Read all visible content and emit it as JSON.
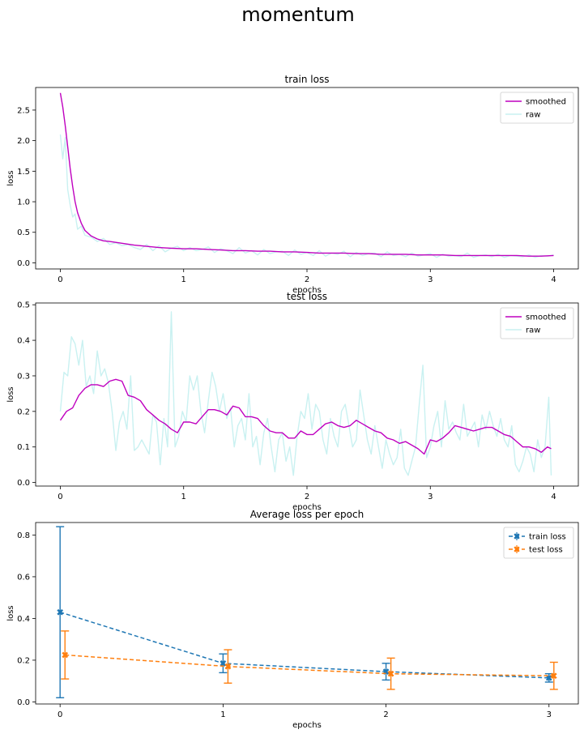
{
  "suptitle": "momentum",
  "chart_data": [
    {
      "type": "line",
      "title": "train loss",
      "xlabel": "epochs",
      "ylabel": "loss",
      "xlim": [
        -0.2,
        4.2
      ],
      "ylim": [
        -0.1,
        2.87
      ],
      "xticks": [
        0,
        1,
        2,
        3,
        4
      ],
      "yticks": [
        0.0,
        0.5,
        1.0,
        1.5,
        2.0,
        2.5
      ],
      "ytick_labels": [
        "0.0",
        "0.5",
        "1.0",
        "1.5",
        "2.0",
        "2.5"
      ],
      "legend_position": "upper right",
      "series": [
        {
          "name": "smoothed",
          "color": "#bf00bf",
          "x": [
            0,
            0.02,
            0.04,
            0.06,
            0.08,
            0.1,
            0.12,
            0.14,
            0.17,
            0.2,
            0.25,
            0.3,
            0.35,
            0.4,
            0.5,
            0.6,
            0.7,
            0.8,
            0.9,
            1.0,
            1.1,
            1.2,
            1.3,
            1.4,
            1.5,
            1.6,
            1.7,
            1.8,
            1.9,
            2.0,
            2.1,
            2.2,
            2.3,
            2.4,
            2.5,
            2.6,
            2.7,
            2.8,
            2.9,
            3.0,
            3.1,
            3.2,
            3.3,
            3.4,
            3.5,
            3.6,
            3.7,
            3.8,
            3.9,
            4.0
          ],
          "values": [
            2.78,
            2.55,
            2.25,
            1.9,
            1.55,
            1.25,
            1.0,
            0.82,
            0.65,
            0.53,
            0.44,
            0.39,
            0.36,
            0.35,
            0.32,
            0.29,
            0.27,
            0.25,
            0.24,
            0.23,
            0.23,
            0.22,
            0.21,
            0.2,
            0.2,
            0.19,
            0.19,
            0.18,
            0.18,
            0.17,
            0.16,
            0.16,
            0.16,
            0.15,
            0.15,
            0.14,
            0.14,
            0.14,
            0.13,
            0.13,
            0.13,
            0.12,
            0.12,
            0.12,
            0.12,
            0.12,
            0.12,
            0.11,
            0.11,
            0.12
          ]
        },
        {
          "name": "raw",
          "color": "#c9f1f1",
          "x": [
            0,
            0.02,
            0.04,
            0.06,
            0.08,
            0.1,
            0.12,
            0.14,
            0.17,
            0.2,
            0.25,
            0.3,
            0.35,
            0.4,
            0.45,
            0.5,
            0.55,
            0.6,
            0.65,
            0.7,
            0.75,
            0.8,
            0.85,
            0.9,
            0.95,
            1.0,
            1.05,
            1.1,
            1.15,
            1.2,
            1.25,
            1.3,
            1.35,
            1.4,
            1.45,
            1.5,
            1.55,
            1.6,
            1.65,
            1.7,
            1.75,
            1.8,
            1.85,
            1.9,
            1.95,
            2.0,
            2.05,
            2.1,
            2.15,
            2.2,
            2.25,
            2.3,
            2.35,
            2.4,
            2.45,
            2.5,
            2.55,
            2.6,
            2.65,
            2.7,
            2.75,
            2.8,
            2.85,
            2.9,
            2.95,
            3.0,
            3.05,
            3.1,
            3.15,
            3.2,
            3.25,
            3.3,
            3.35,
            3.4,
            3.45,
            3.5,
            3.55,
            3.6,
            3.65,
            3.7,
            3.75,
            3.8,
            3.85,
            3.9,
            3.95,
            4.0
          ],
          "values": [
            2.1,
            1.7,
            2.05,
            1.2,
            0.95,
            0.75,
            0.8,
            0.55,
            0.6,
            0.45,
            0.42,
            0.35,
            0.4,
            0.3,
            0.33,
            0.28,
            0.3,
            0.25,
            0.22,
            0.3,
            0.2,
            0.28,
            0.18,
            0.24,
            0.27,
            0.2,
            0.25,
            0.2,
            0.22,
            0.26,
            0.17,
            0.23,
            0.2,
            0.15,
            0.25,
            0.16,
            0.2,
            0.13,
            0.22,
            0.15,
            0.18,
            0.19,
            0.12,
            0.21,
            0.14,
            0.17,
            0.12,
            0.2,
            0.11,
            0.16,
            0.14,
            0.19,
            0.1,
            0.17,
            0.12,
            0.15,
            0.16,
            0.1,
            0.18,
            0.12,
            0.14,
            0.1,
            0.16,
            0.11,
            0.13,
            0.15,
            0.09,
            0.14,
            0.11,
            0.12,
            0.1,
            0.16,
            0.09,
            0.12,
            0.13,
            0.1,
            0.14,
            0.09,
            0.12,
            0.11,
            0.1,
            0.13,
            0.09,
            0.12,
            0.11,
            0.13
          ]
        }
      ]
    },
    {
      "type": "line",
      "title": "test loss",
      "xlabel": "epochs",
      "ylabel": "loss",
      "xlim": [
        -0.2,
        4.2
      ],
      "ylim": [
        -0.01,
        0.505
      ],
      "xticks": [
        0,
        1,
        2,
        3,
        4
      ],
      "yticks": [
        0.0,
        0.1,
        0.2,
        0.3,
        0.4,
        0.5
      ],
      "ytick_labels": [
        "0.0",
        "0.1",
        "0.2",
        "0.3",
        "0.4",
        "0.5"
      ],
      "legend_position": "upper right",
      "series": [
        {
          "name": "smoothed",
          "color": "#bf00bf",
          "x": [
            0,
            0.05,
            0.1,
            0.15,
            0.2,
            0.25,
            0.3,
            0.35,
            0.4,
            0.45,
            0.5,
            0.55,
            0.6,
            0.65,
            0.7,
            0.75,
            0.8,
            0.85,
            0.9,
            0.95,
            1.0,
            1.05,
            1.1,
            1.15,
            1.2,
            1.25,
            1.3,
            1.35,
            1.4,
            1.45,
            1.5,
            1.55,
            1.6,
            1.65,
            1.7,
            1.75,
            1.8,
            1.85,
            1.9,
            1.95,
            2.0,
            2.05,
            2.1,
            2.15,
            2.2,
            2.25,
            2.3,
            2.35,
            2.4,
            2.45,
            2.5,
            2.55,
            2.6,
            2.65,
            2.7,
            2.75,
            2.8,
            2.85,
            2.9,
            2.95,
            3.0,
            3.05,
            3.1,
            3.15,
            3.2,
            3.25,
            3.3,
            3.35,
            3.4,
            3.45,
            3.5,
            3.55,
            3.6,
            3.65,
            3.7,
            3.75,
            3.8,
            3.85,
            3.9,
            3.95,
            3.98
          ],
          "values": [
            0.175,
            0.2,
            0.21,
            0.245,
            0.265,
            0.275,
            0.275,
            0.27,
            0.285,
            0.29,
            0.285,
            0.245,
            0.24,
            0.23,
            0.205,
            0.19,
            0.175,
            0.165,
            0.15,
            0.14,
            0.17,
            0.17,
            0.165,
            0.185,
            0.205,
            0.205,
            0.2,
            0.19,
            0.215,
            0.21,
            0.185,
            0.185,
            0.18,
            0.16,
            0.145,
            0.14,
            0.14,
            0.125,
            0.125,
            0.145,
            0.135,
            0.135,
            0.15,
            0.165,
            0.17,
            0.16,
            0.155,
            0.16,
            0.175,
            0.165,
            0.155,
            0.145,
            0.14,
            0.125,
            0.12,
            0.11,
            0.115,
            0.105,
            0.095,
            0.08,
            0.12,
            0.115,
            0.125,
            0.14,
            0.16,
            0.155,
            0.15,
            0.145,
            0.15,
            0.155,
            0.155,
            0.145,
            0.135,
            0.13,
            0.115,
            0.1,
            0.1,
            0.095,
            0.085,
            0.1,
            0.095
          ]
        },
        {
          "name": "raw",
          "color": "#c9f1f1",
          "x": [
            0,
            0.03,
            0.06,
            0.09,
            0.12,
            0.15,
            0.18,
            0.21,
            0.24,
            0.27,
            0.3,
            0.33,
            0.36,
            0.39,
            0.42,
            0.45,
            0.48,
            0.51,
            0.54,
            0.57,
            0.6,
            0.63,
            0.66,
            0.69,
            0.72,
            0.75,
            0.78,
            0.81,
            0.84,
            0.87,
            0.9,
            0.93,
            0.96,
            0.99,
            1.02,
            1.05,
            1.08,
            1.11,
            1.14,
            1.17,
            1.2,
            1.23,
            1.26,
            1.29,
            1.32,
            1.35,
            1.38,
            1.41,
            1.44,
            1.47,
            1.5,
            1.53,
            1.56,
            1.59,
            1.62,
            1.65,
            1.68,
            1.71,
            1.74,
            1.77,
            1.8,
            1.83,
            1.86,
            1.89,
            1.92,
            1.95,
            1.98,
            2.01,
            2.04,
            2.07,
            2.1,
            2.13,
            2.16,
            2.19,
            2.22,
            2.25,
            2.28,
            2.31,
            2.34,
            2.37,
            2.4,
            2.43,
            2.46,
            2.49,
            2.52,
            2.55,
            2.58,
            2.61,
            2.64,
            2.67,
            2.7,
            2.73,
            2.76,
            2.79,
            2.82,
            2.85,
            2.88,
            2.91,
            2.94,
            2.97,
            3.0,
            3.03,
            3.06,
            3.09,
            3.12,
            3.15,
            3.18,
            3.21,
            3.24,
            3.27,
            3.3,
            3.33,
            3.36,
            3.39,
            3.42,
            3.45,
            3.48,
            3.51,
            3.54,
            3.57,
            3.6,
            3.63,
            3.66,
            3.69,
            3.72,
            3.75,
            3.78,
            3.81,
            3.84,
            3.87,
            3.9,
            3.93,
            3.96,
            3.98
          ],
          "values": [
            0.2,
            0.31,
            0.3,
            0.41,
            0.39,
            0.33,
            0.4,
            0.27,
            0.3,
            0.25,
            0.37,
            0.3,
            0.32,
            0.28,
            0.2,
            0.09,
            0.17,
            0.2,
            0.15,
            0.3,
            0.09,
            0.1,
            0.12,
            0.1,
            0.08,
            0.19,
            0.17,
            0.05,
            0.18,
            0.1,
            0.48,
            0.1,
            0.13,
            0.2,
            0.17,
            0.3,
            0.26,
            0.3,
            0.2,
            0.14,
            0.23,
            0.31,
            0.27,
            0.2,
            0.25,
            0.18,
            0.21,
            0.1,
            0.16,
            0.18,
            0.12,
            0.25,
            0.1,
            0.13,
            0.05,
            0.14,
            0.18,
            0.1,
            0.03,
            0.12,
            0.14,
            0.06,
            0.1,
            0.02,
            0.13,
            0.2,
            0.18,
            0.25,
            0.15,
            0.22,
            0.2,
            0.12,
            0.08,
            0.18,
            0.13,
            0.1,
            0.2,
            0.22,
            0.16,
            0.1,
            0.12,
            0.26,
            0.19,
            0.12,
            0.08,
            0.16,
            0.1,
            0.04,
            0.12,
            0.08,
            0.05,
            0.07,
            0.15,
            0.04,
            0.02,
            0.06,
            0.1,
            0.22,
            0.33,
            0.07,
            0.1,
            0.16,
            0.2,
            0.1,
            0.23,
            0.15,
            0.17,
            0.14,
            0.12,
            0.22,
            0.13,
            0.15,
            0.17,
            0.1,
            0.19,
            0.15,
            0.2,
            0.16,
            0.13,
            0.18,
            0.12,
            0.1,
            0.16,
            0.05,
            0.03,
            0.06,
            0.1,
            0.08,
            0.03,
            0.12,
            0.07,
            0.1,
            0.24,
            0.02
          ]
        }
      ]
    },
    {
      "type": "line",
      "title": "Average loss per epoch",
      "xlabel": "epochs",
      "ylabel": "loss",
      "xlim": [
        -0.15,
        3.18
      ],
      "ylim": [
        -0.01,
        0.86
      ],
      "xticks": [
        0,
        1,
        2,
        3
      ],
      "yticks": [
        0.0,
        0.2,
        0.4,
        0.6,
        0.8
      ],
      "ytick_labels": [
        "0.0",
        "0.2",
        "0.4",
        "0.6",
        "0.8"
      ],
      "legend_position": "upper right",
      "series": [
        {
          "name": "train loss",
          "color": "#1f77b4",
          "linestyle": "dashed",
          "marker": "X",
          "x": [
            0,
            1,
            2,
            3
          ],
          "values": [
            0.43,
            0.185,
            0.145,
            0.115
          ],
          "yerr": [
            0.41,
            0.045,
            0.04,
            0.02
          ]
        },
        {
          "name": "test loss",
          "color": "#ff7f0e",
          "linestyle": "dashed",
          "marker": "X",
          "x": [
            0.03,
            1.03,
            2.03,
            3.03
          ],
          "values": [
            0.225,
            0.17,
            0.135,
            0.125
          ],
          "yerr": [
            0.115,
            0.08,
            0.075,
            0.065
          ]
        }
      ]
    }
  ]
}
